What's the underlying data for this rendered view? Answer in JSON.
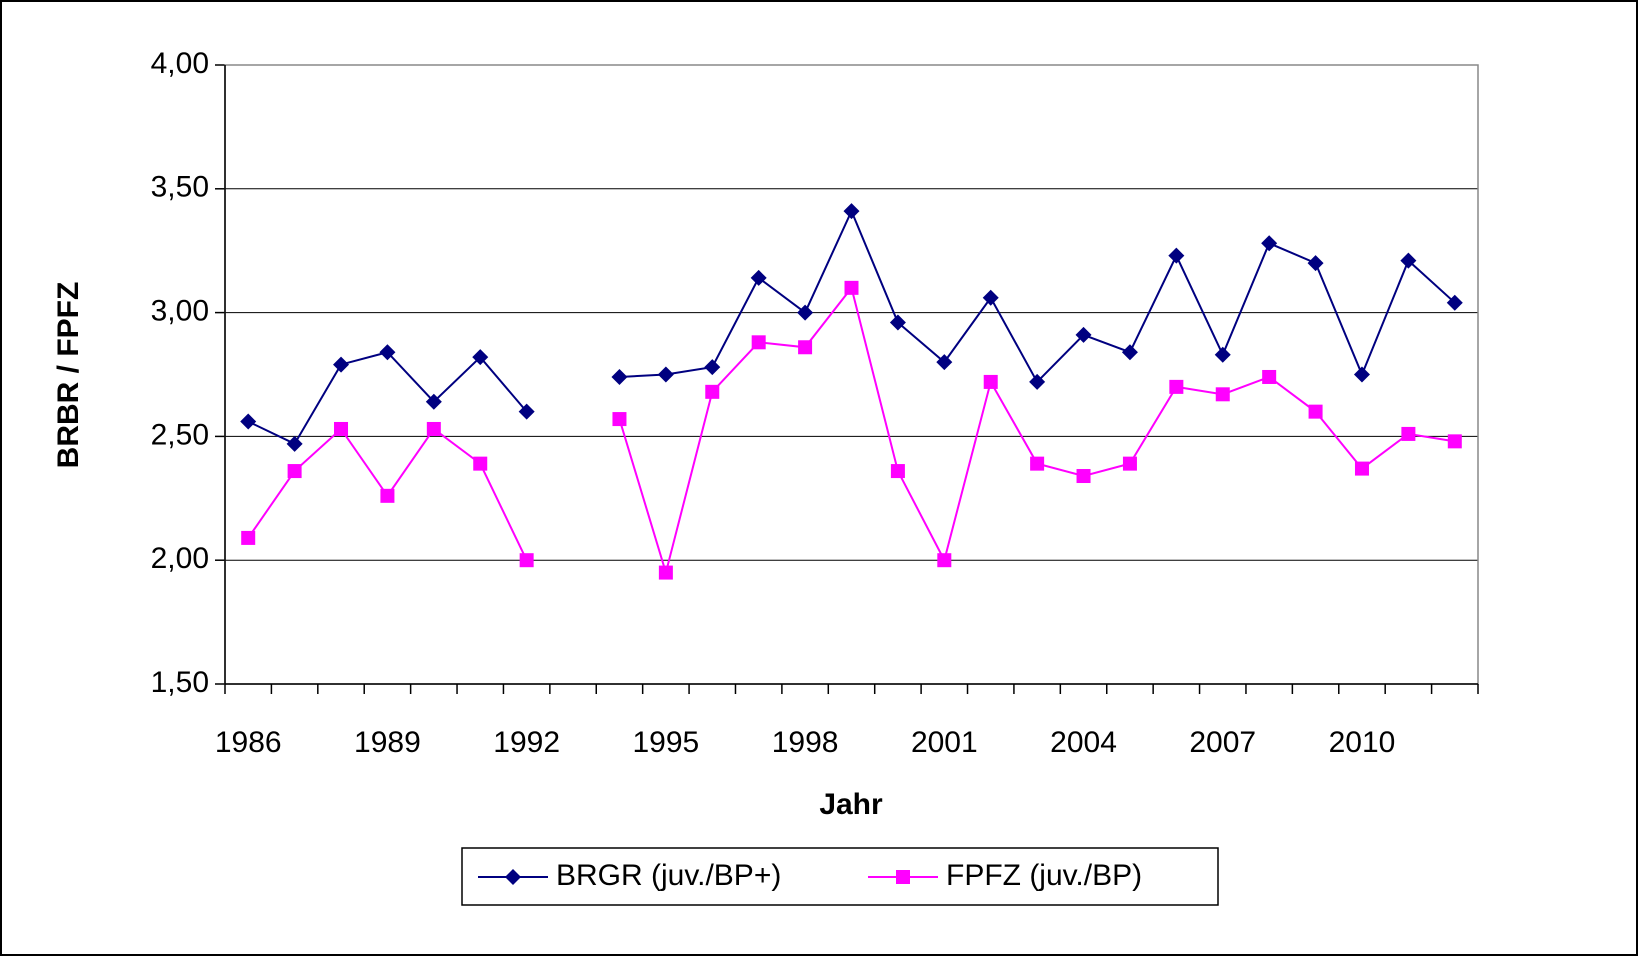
{
  "chart_data": {
    "type": "line",
    "x_label": "Jahr",
    "y_label": "BRBR / FPFZ",
    "categories": [
      "1986",
      null,
      null,
      "1989",
      null,
      null,
      "1992",
      null,
      null,
      "1995",
      null,
      null,
      "1998",
      null,
      null,
      "2001",
      null,
      null,
      "2004",
      null,
      null,
      "2007",
      null,
      null,
      "2010",
      null,
      null
    ],
    "series": [
      {
        "name": "BRGR (juv./BP+)",
        "color": "#000080",
        "marker": "diamond",
        "values": [
          2.56,
          2.47,
          2.79,
          2.84,
          2.64,
          2.82,
          2.6,
          null,
          2.74,
          2.75,
          2.78,
          3.14,
          3.0,
          3.41,
          2.96,
          2.8,
          3.06,
          2.72,
          2.91,
          2.84,
          3.23,
          2.83,
          3.28,
          3.2,
          2.75,
          3.21,
          3.04
        ]
      },
      {
        "name": "FPFZ (juv./BP)",
        "color": "#ff00ff",
        "marker": "square",
        "values": [
          2.09,
          2.36,
          2.53,
          2.26,
          2.53,
          2.39,
          2.0,
          null,
          2.57,
          1.95,
          2.68,
          2.88,
          2.86,
          3.1,
          2.36,
          2.0,
          2.72,
          2.39,
          2.34,
          2.39,
          2.7,
          2.67,
          2.74,
          2.6,
          2.37,
          2.51,
          2.48
        ]
      }
    ],
    "ylim": [
      1.5,
      4
    ],
    "yticks": [
      {
        "value": 1.5,
        "label": "1,50"
      },
      {
        "value": 2,
        "label": "2,00"
      },
      {
        "value": 2.5,
        "label": "2,50"
      },
      {
        "value": 3,
        "label": "3,00"
      },
      {
        "value": 3.5,
        "label": "3,50"
      },
      {
        "value": 4,
        "label": "4,00"
      }
    ],
    "grid": true,
    "legend": "bottom"
  }
}
